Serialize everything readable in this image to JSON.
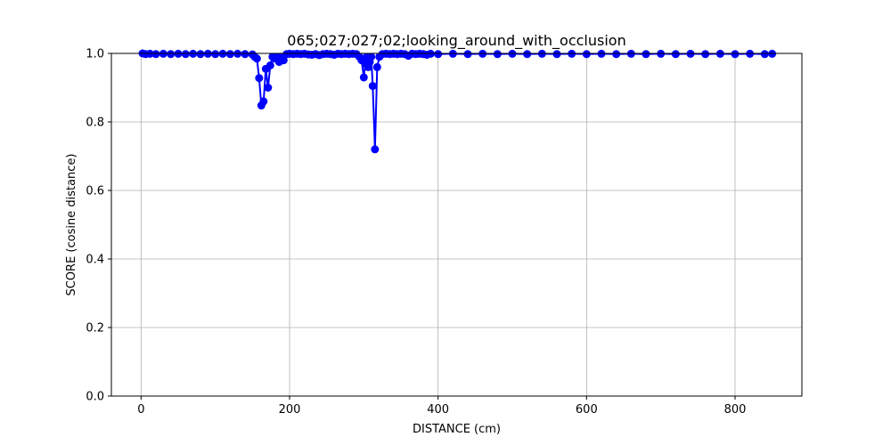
{
  "chart_data": {
    "type": "line",
    "title": "065;027;027;02;looking_around_with_occlusion",
    "xlabel": "DISTANCE (cm)",
    "ylabel": "SCORE (cosine distance)",
    "xlim": [
      -40,
      890
    ],
    "ylim": [
      0,
      1.0
    ],
    "xticks": [
      0,
      200,
      400,
      600,
      800
    ],
    "yticks": [
      0.0,
      0.2,
      0.4,
      0.6,
      0.8,
      1.0
    ],
    "xtick_labels": [
      "0",
      "200",
      "400",
      "600",
      "800"
    ],
    "ytick_labels": [
      "0.0",
      "0.2",
      "0.4",
      "0.6",
      "0.8",
      "1.0"
    ],
    "grid": true,
    "series": [
      {
        "color": "#0000ff",
        "marker": "circle",
        "x": [
          2,
          6,
          12,
          20,
          30,
          40,
          50,
          60,
          70,
          80,
          90,
          100,
          110,
          120,
          130,
          140,
          150,
          153,
          156,
          159,
          162,
          165,
          168,
          171,
          174,
          177,
          180,
          183,
          186,
          189,
          192,
          196,
          200,
          205,
          210,
          215,
          220,
          225,
          230,
          235,
          240,
          245,
          250,
          255,
          260,
          265,
          270,
          275,
          280,
          285,
          290,
          294,
          297,
          300,
          302,
          304,
          306,
          308,
          310,
          312,
          315,
          318,
          321,
          325,
          330,
          335,
          340,
          345,
          350,
          355,
          360,
          365,
          370,
          375,
          380,
          385,
          390,
          400,
          420,
          440,
          460,
          480,
          500,
          520,
          540,
          560,
          580,
          600,
          620,
          640,
          660,
          680,
          700,
          720,
          740,
          760,
          780,
          800,
          820,
          840,
          850
        ],
        "y": [
          1.0,
          0.998,
          0.999,
          0.998,
          0.999,
          0.998,
          0.999,
          0.998,
          0.999,
          0.998,
          0.999,
          0.998,
          0.999,
          0.998,
          0.999,
          0.998,
          0.997,
          0.99,
          0.985,
          0.928,
          0.848,
          0.86,
          0.955,
          0.9,
          0.965,
          0.99,
          0.985,
          0.99,
          0.975,
          0.99,
          0.98,
          0.998,
          0.999,
          0.998,
          0.999,
          0.998,
          0.999,
          0.997,
          0.996,
          0.998,
          0.995,
          0.998,
          0.999,
          0.998,
          0.996,
          0.999,
          0.998,
          0.999,
          0.998,
          0.999,
          0.998,
          0.99,
          0.98,
          0.93,
          0.97,
          0.99,
          0.96,
          0.975,
          0.99,
          0.905,
          0.72,
          0.96,
          0.99,
          0.998,
          0.999,
          0.998,
          0.999,
          0.998,
          0.999,
          0.998,
          0.993,
          0.999,
          0.998,
          0.999,
          0.998,
          0.996,
          0.999,
          0.998,
          0.999,
          0.998,
          0.999,
          0.998,
          0.999,
          0.998,
          0.999,
          0.998,
          0.999,
          0.998,
          0.999,
          0.998,
          0.999,
          0.998,
          0.999,
          0.998,
          0.999,
          0.998,
          0.999,
          0.998,
          0.999,
          0.998,
          0.999
        ]
      }
    ]
  }
}
